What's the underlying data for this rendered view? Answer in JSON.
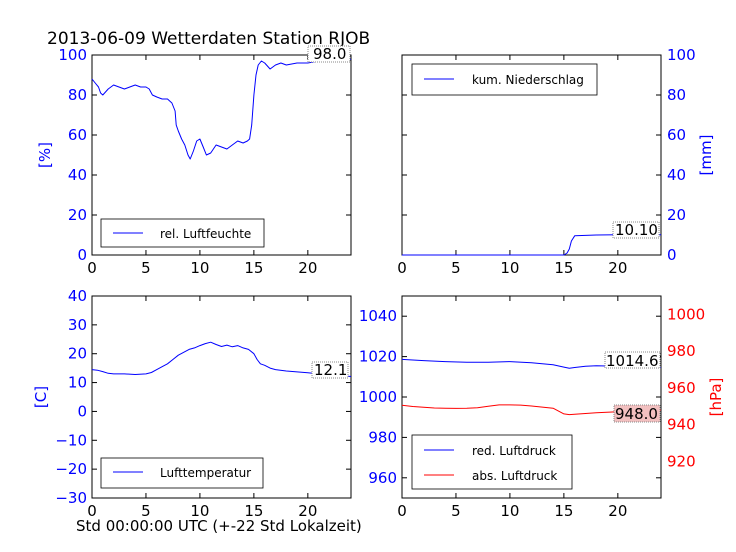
{
  "title": "2013-06-09 Wetterdaten Station RJOB",
  "xlabel": "Std 00:00:00 UTC (+-22 Std Lokalzeit)",
  "colors": {
    "blue": "#0000ff",
    "red": "#ff0000",
    "annotation_fill": "#f2c0c0"
  },
  "chart_data": [
    {
      "id": "humidity",
      "type": "line",
      "xlim": [
        0,
        24
      ],
      "ylim": [
        0,
        100
      ],
      "xticks": [
        "0",
        "5",
        "10",
        "15",
        "20"
      ],
      "yticks": [
        "0",
        "20",
        "40",
        "60",
        "80",
        "100"
      ],
      "ylabel": "[%]",
      "axis_color": "#0000ff",
      "legend": {
        "label": "rel. Luftfeuchte",
        "loc": "lower-left"
      },
      "annotation": "98.0",
      "series": [
        {
          "name": "rel. Luftfeuchte",
          "color": "#0000ff",
          "x": [
            0,
            0.3,
            0.6,
            0.8,
            1.0,
            1.5,
            2.0,
            2.5,
            3.0,
            3.5,
            4.0,
            4.5,
            5.0,
            5.3,
            5.6,
            6.0,
            6.5,
            7.0,
            7.4,
            7.7,
            7.8,
            8.0,
            8.3,
            8.6,
            8.9,
            9.1,
            9.4,
            9.7,
            10.0,
            10.3,
            10.6,
            11.0,
            11.5,
            12.0,
            12.5,
            13.0,
            13.5,
            14.0,
            14.4,
            14.6,
            14.8,
            15.0,
            15.2,
            15.4,
            15.7,
            16.0,
            16.5,
            17.0,
            17.5,
            18.0,
            19.0,
            20.0,
            21.0,
            22.0,
            23.0,
            24.0
          ],
          "y": [
            88,
            86,
            84,
            81,
            80,
            83,
            85,
            84,
            83,
            84,
            85,
            84,
            84,
            83,
            80,
            79,
            78,
            78,
            76,
            72,
            65,
            62,
            58,
            55,
            50,
            48,
            52,
            57,
            58,
            54,
            50,
            51,
            55,
            54,
            53,
            55,
            57,
            56,
            57,
            58,
            65,
            80,
            90,
            95,
            97,
            96,
            93,
            95,
            96,
            95,
            96,
            96,
            97,
            97,
            97,
            98
          ]
        }
      ]
    },
    {
      "id": "precipitation",
      "type": "line",
      "xlim": [
        0,
        24
      ],
      "ylim": [
        0,
        100
      ],
      "xticks": [
        "0",
        "5",
        "10",
        "15",
        "20"
      ],
      "yticks": [
        "0",
        "20",
        "40",
        "60",
        "80",
        "100"
      ],
      "ylabel": "[mm]",
      "axis_color": "#0000ff",
      "legend": {
        "label": "kum. Niederschlag",
        "loc": "upper-left"
      },
      "annotation": "10.10",
      "series": [
        {
          "name": "kum. Niederschlag",
          "color": "#0000ff",
          "x": [
            0,
            15.0,
            15.3,
            15.5,
            15.7,
            16.0,
            18.0,
            20.0,
            22.0,
            24.0
          ],
          "y": [
            0,
            0,
            1,
            3,
            7,
            9.6,
            10.0,
            10.1,
            10.1,
            10.1
          ]
        }
      ]
    },
    {
      "id": "temperature",
      "type": "line",
      "xlim": [
        0,
        24
      ],
      "ylim": [
        -30,
        40
      ],
      "xticks": [
        "0",
        "5",
        "10",
        "15",
        "20"
      ],
      "yticks": [
        "−30",
        "−20",
        "−10",
        "0",
        "10",
        "20",
        "30",
        "40"
      ],
      "ylabel": "[C]",
      "axis_color": "#0000ff",
      "legend": {
        "label": "Lufttemperatur",
        "loc": "lower-left"
      },
      "annotation": "12.1",
      "series": [
        {
          "name": "Lufttemperatur",
          "color": "#0000ff",
          "x": [
            0,
            0.5,
            1.0,
            1.5,
            2.0,
            3.0,
            4.0,
            5.0,
            5.5,
            6.0,
            6.5,
            7.0,
            7.5,
            8.0,
            8.5,
            9.0,
            9.5,
            10.0,
            10.5,
            11.0,
            11.5,
            12.0,
            12.5,
            13.0,
            13.5,
            14.0,
            14.5,
            15.0,
            15.3,
            15.6,
            16.0,
            16.5,
            17.0,
            18.0,
            19.0,
            20.0,
            21.0,
            22.0,
            23.0,
            24.0
          ],
          "y": [
            14.5,
            14.3,
            13.8,
            13.2,
            13.0,
            13.0,
            12.8,
            13.0,
            13.5,
            14.5,
            15.5,
            16.5,
            18.0,
            19.5,
            20.5,
            21.5,
            22.0,
            22.8,
            23.5,
            24.0,
            23.2,
            22.5,
            23.0,
            22.4,
            22.8,
            22.0,
            21.5,
            20.0,
            18.0,
            16.5,
            16.0,
            15.0,
            14.5,
            14.0,
            13.7,
            13.4,
            13.0,
            12.7,
            12.4,
            12.1
          ]
        }
      ]
    },
    {
      "id": "pressure",
      "type": "line",
      "xlim": [
        0,
        24
      ],
      "ylim": [
        950,
        1050
      ],
      "y2lim": [
        900,
        1010
      ],
      "xticks": [
        "0",
        "5",
        "10",
        "15",
        "20"
      ],
      "yticks": [
        "960",
        "980",
        "1000",
        "1020",
        "1040"
      ],
      "y2ticks": [
        "920",
        "940",
        "960",
        "980",
        "1000"
      ],
      "y2label": "[hPa]",
      "axis_color": "#0000ff",
      "axis2_color": "#ff0000",
      "legend": {
        "labels": [
          "red. Luftdruck",
          "abs. Luftdruck"
        ],
        "loc": "lower-left"
      },
      "annotations": [
        "1014.6",
        "948.0"
      ],
      "series": [
        {
          "name": "red. Luftdruck",
          "color": "#0000ff",
          "axis": "left",
          "x": [
            0,
            2,
            4,
            6,
            8,
            10,
            12,
            14,
            15,
            15.5,
            16,
            17,
            18,
            20,
            22,
            24
          ],
          "y": [
            1018.6,
            1018.0,
            1017.5,
            1017.2,
            1017.2,
            1017.5,
            1017.0,
            1016.0,
            1014.8,
            1014.2,
            1014.6,
            1015.2,
            1015.5,
            1015.2,
            1014.8,
            1014.6
          ]
        },
        {
          "name": "abs. Luftdruck",
          "color": "#ff0000",
          "axis": "right",
          "x": [
            0,
            1,
            2,
            3,
            4,
            5,
            6,
            7,
            8,
            9,
            10,
            11,
            12,
            13,
            14,
            15,
            15.5,
            16,
            17,
            18,
            19,
            20,
            21,
            22,
            23,
            24
          ],
          "y": [
            950.5,
            949.8,
            949.4,
            949.0,
            948.9,
            948.8,
            948.9,
            949.2,
            950.0,
            950.7,
            950.7,
            950.6,
            950.1,
            949.5,
            948.9,
            945.8,
            945.4,
            945.6,
            946.0,
            946.4,
            946.7,
            947.0,
            947.4,
            947.7,
            947.8,
            948.0
          ]
        }
      ]
    }
  ]
}
